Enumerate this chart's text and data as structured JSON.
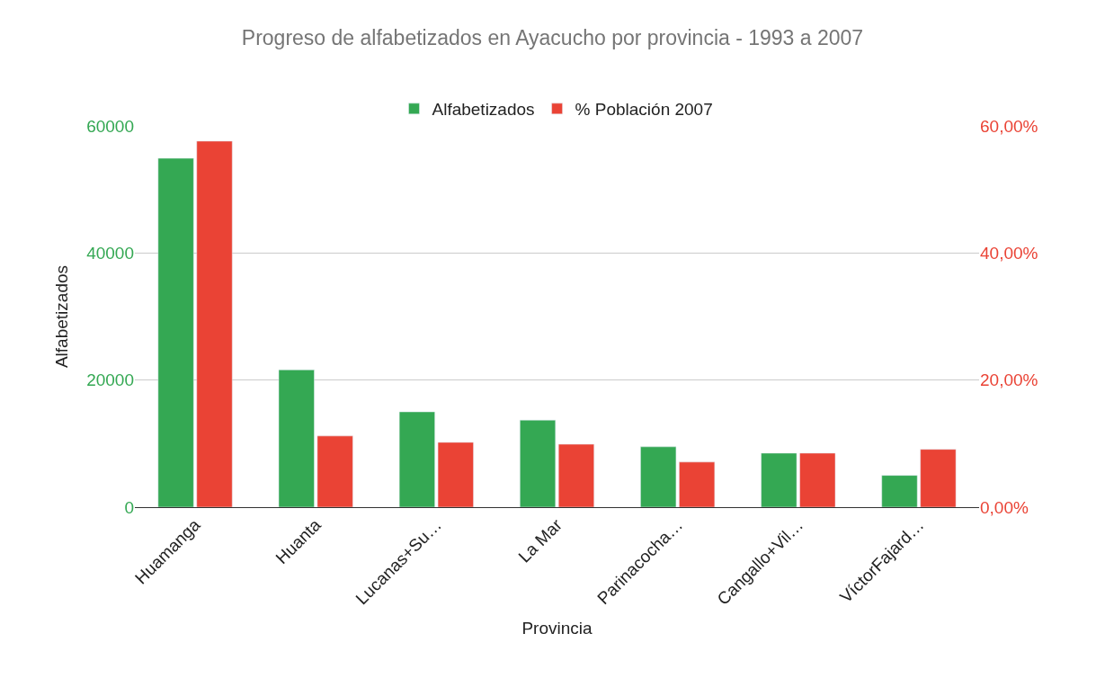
{
  "chart_data": {
    "type": "bar",
    "title": "Progreso de alfabetizados en Ayacucho por provincia - 1993 a 2007",
    "xlabel": "Provincia",
    "ylabel": "Alfabetizados",
    "categories": [
      "Huamanga",
      "Huanta",
      "Lucanas+Su…",
      "La Mar",
      "Parinacocha…",
      "Cangallo+Vil…",
      "VíctorFajard…"
    ],
    "series": [
      {
        "name": "Alfabetizados",
        "color": "#34a853",
        "values": [
          54900,
          21600,
          15000,
          13700,
          9500,
          8500,
          5000
        ]
      },
      {
        "name": "% Población 2007",
        "color": "#ea4335",
        "axis": "y2",
        "values": [
          57.6,
          11.2,
          10.2,
          9.9,
          7.1,
          8.5,
          9.1
        ]
      }
    ],
    "ylim": [
      0,
      60000
    ],
    "yticks": [
      0,
      20000,
      40000,
      60000
    ],
    "y2lim": [
      0,
      60
    ],
    "y2ticks": [
      {
        "value": 0,
        "label": "0,00%"
      },
      {
        "value": 20,
        "label": "20,00%"
      },
      {
        "value": 40,
        "label": "40,00%"
      },
      {
        "value": 60,
        "label": "60,00%"
      }
    ],
    "grid": "y",
    "legend": "top"
  }
}
